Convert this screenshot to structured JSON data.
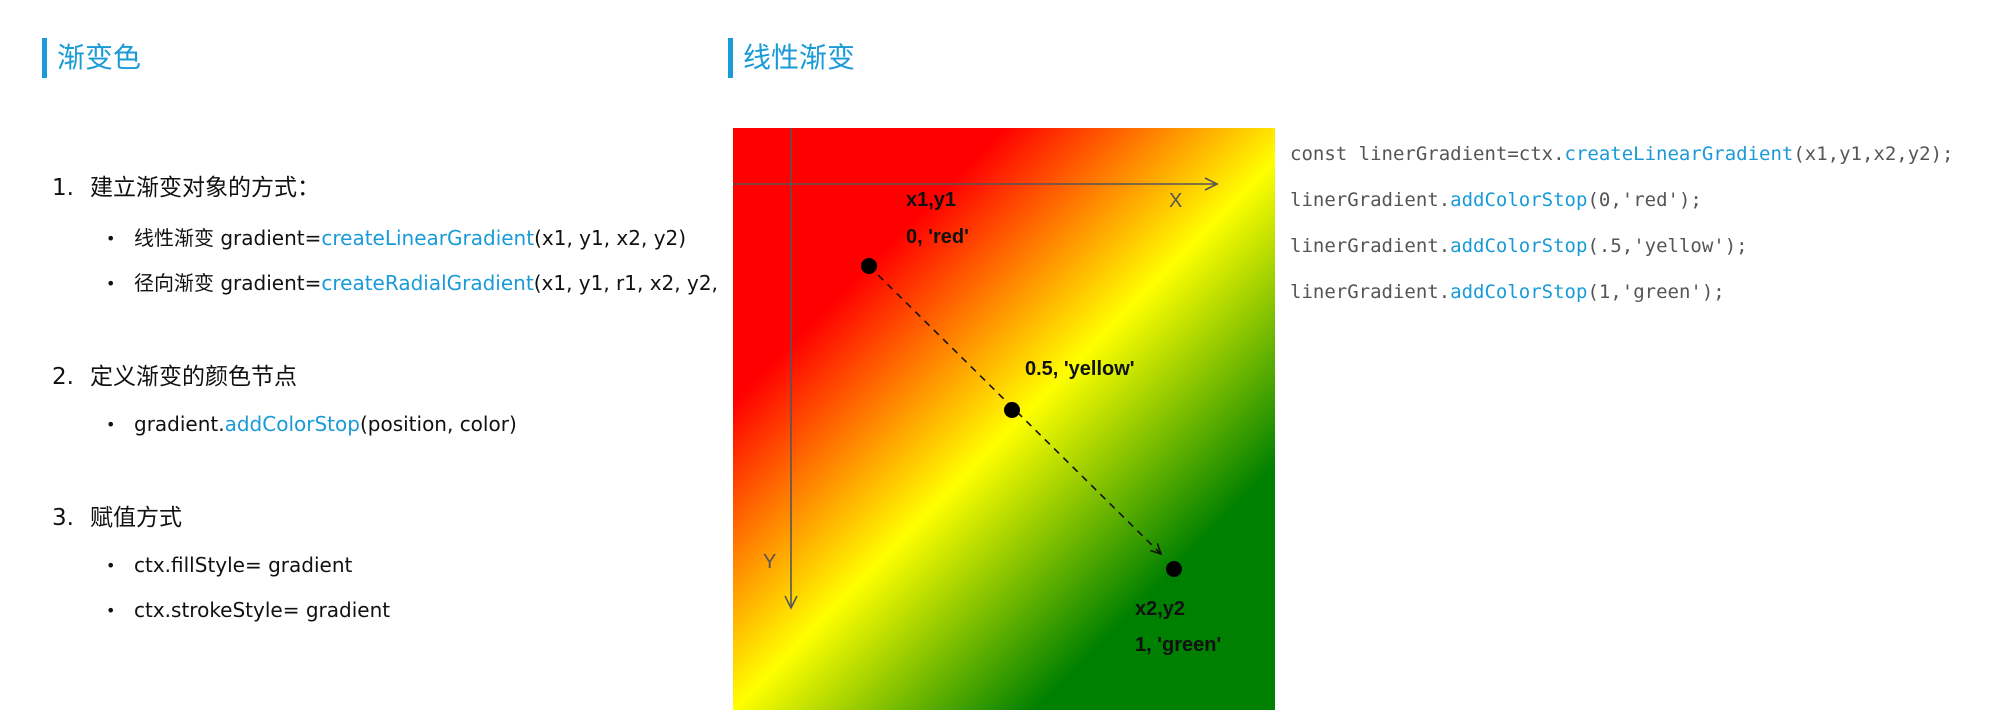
{
  "left": {
    "title": "渐变色",
    "items": [
      {
        "num": "1.",
        "text": "建立渐变对象的方式：",
        "bullets": [
          {
            "prefix": "线性渐变  gradient=",
            "method": "createLinearGradient",
            "suffix": "(x1, y1, x2, y2)"
          },
          {
            "prefix": "径向渐变 gradient=",
            "method": "createRadialGradient",
            "suffix": "(x1, y1, r1, x2, y2,"
          }
        ]
      },
      {
        "num": "2.",
        "text": "定义渐变的颜色节点",
        "bullets": [
          {
            "prefix": "gradient.",
            "method": "addColorStop",
            "suffix": "(position, color)"
          }
        ]
      },
      {
        "num": "3.",
        "text": "赋值方式",
        "bullets": [
          {
            "prefix": "ctx.fillStyle= gradient",
            "method": "",
            "suffix": ""
          },
          {
            "prefix": "ctx.strokeStyle= gradient",
            "method": "",
            "suffix": ""
          }
        ]
      }
    ]
  },
  "right": {
    "title": "线性渐变",
    "diagram": {
      "axis_x": "X",
      "axis_y": "Y",
      "start_label": "x1,y1",
      "start_stop": "0, 'red'",
      "mid_stop": "0.5, 'yellow'",
      "end_label": "x2,y2",
      "end_stop": "1, 'green'",
      "colors": {
        "red": "#ff0000",
        "yellow": "#ffff00",
        "green": "#008000"
      }
    },
    "code": [
      {
        "prefix": "const linerGradient=ctx.",
        "method": "createLinearGradient",
        "suffix": "(x1,y1,x2,y2);"
      },
      {
        "prefix": "linerGradient.",
        "method": "addColorStop",
        "suffix": "(0,'red');"
      },
      {
        "prefix": "linerGradient.",
        "method": "addColorStop",
        "suffix": "(.5,'yellow');"
      },
      {
        "prefix": "linerGradient.",
        "method": "addColorStop",
        "suffix": "(1,'green');"
      }
    ]
  }
}
